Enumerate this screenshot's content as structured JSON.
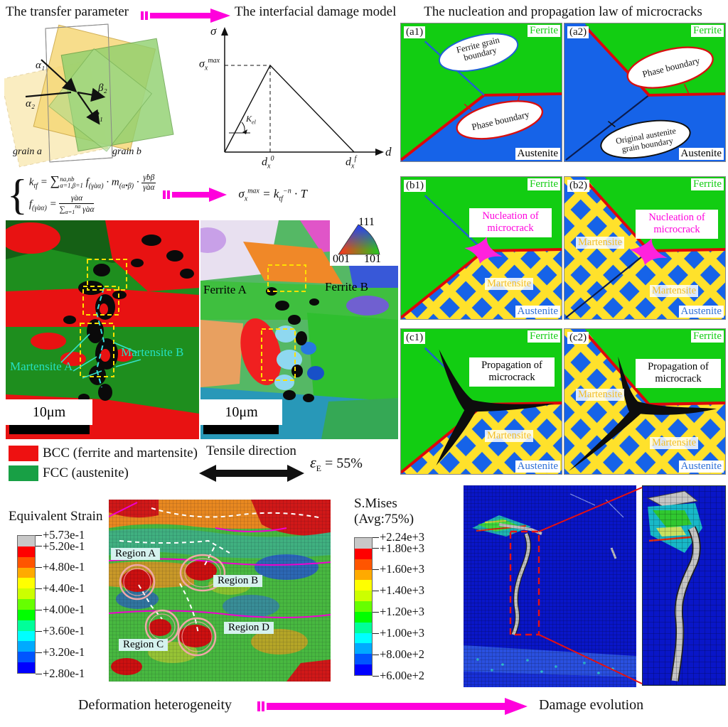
{
  "colors": {
    "accent_magenta": "#FF00DC",
    "ferrite_green": "#12CD12",
    "austenite_blue": "#1663E8",
    "martensite_yellow": "#FFE12B",
    "phase_boundary_red": "#DD0808",
    "grain_boundary_blue": "#2060D0",
    "bcc_red": "#EE1111",
    "fcc_green": "#18A045",
    "region_chip_cyan": "#D5F2EE"
  },
  "colorbar_colors": [
    "#C8C8C8",
    "#FF0000",
    "#FF5500",
    "#FFAA00",
    "#FFFF00",
    "#CCFF00",
    "#66FF00",
    "#00FF00",
    "#00FF99",
    "#00FFFF",
    "#00AAFF",
    "#0055FF",
    "#0000FF"
  ],
  "header": {
    "transfer": "The transfer parameter",
    "interfacial": "The interfacial damage model",
    "nucleation": "The nucleation and propagation law of microcracks"
  },
  "grain_diagram": {
    "alpha1": "α₁",
    "alpha2": "α₂",
    "beta1": "β₁",
    "beta2": "β₂",
    "grain_a": "grain a",
    "grain_b": "grain b"
  },
  "traction": {
    "y_label": "σ",
    "peak_base": "σ",
    "peak_sub": "x",
    "peak_sup": "max",
    "k_base": "K",
    "k_sub": "el",
    "x_label": "d",
    "d0_base": "d",
    "d0_sub": "x",
    "d0_sup": "0",
    "df_base": "d",
    "df_sub": "x",
    "df_sup": "f"
  },
  "formulas": {
    "brace": "{",
    "l1": {
      "k": "k",
      "ksub": "tf",
      "eq": "=",
      "sum": "∑",
      "sumsup": "na,nb",
      "sumsub": "α=1,β=1",
      "f": "f",
      "fsub": "(γ̇aα)",
      "dot1": "·",
      "m": "m",
      "msub": "(α•β)",
      "dot2": "·",
      "num": "γ̇bβ",
      "den": "γ̇aα"
    },
    "l2": {
      "f": "f",
      "fsub": "(γ̇aα)",
      "eq": "=",
      "num": "γ̇aα",
      "densum": "∑",
      "densub": "α=1",
      "densup": "na",
      "dentail": "γ̇aα"
    },
    "result": {
      "sigma": "σ",
      "sub": "x",
      "sup": "max",
      "eq": "= k",
      "ksub": "tf",
      "ksup": "−n",
      "tail": "· T"
    }
  },
  "panels": {
    "a1": {
      "id": "(a1)",
      "ferrite": "Ferrite",
      "austenite": "Austenite",
      "ellipse1_l1": "Ferrite grain",
      "ellipse1_l2": "boundary",
      "ellipse2": "Phase boundary"
    },
    "a2": {
      "id": "(a2)",
      "ferrite": "Ferrite",
      "austenite": "Austenite",
      "ellipse1": "Phase boundary",
      "ellipse2_l1": "Original austenite",
      "ellipse2_l2": "grain boundary"
    },
    "b1": {
      "id": "(b1)",
      "ferrite": "Ferrite",
      "austenite": "Austenite",
      "note_l1": "Nucleation of",
      "note_l2": "microcrack",
      "martensite": "Martensite"
    },
    "b2": {
      "id": "(b2)",
      "ferrite": "Ferrite",
      "austenite": "Austenite",
      "note_l1": "Nucleation of",
      "note_l2": "microcrack",
      "martensite1": "Martensite",
      "martensite2": "Martensite"
    },
    "c1": {
      "id": "(c1)",
      "ferrite": "Ferrite",
      "austenite": "Austenite",
      "note_l1": "Propagation of",
      "note_l2": "microcrack",
      "martensite": "Martensite"
    },
    "c2": {
      "id": "(c2)",
      "ferrite": "Ferrite",
      "austenite": "Austenite",
      "note_l1": "Propagation of",
      "note_l2": "microcrack",
      "martensite1": "Martensite",
      "martensite2": "Martensite"
    }
  },
  "ebsd": {
    "left": {
      "martensite_a": "Martensite A",
      "martensite_b": "Martensite B",
      "scale": "10μm"
    },
    "right": {
      "ferrite_a": "Ferrite A",
      "ferrite_b": "Ferrite B",
      "scale": "10μm",
      "ipf_111": "111",
      "ipf_001": "001",
      "ipf_101": "101"
    }
  },
  "legend": {
    "bcc": "BCC (ferrite and martensite)",
    "fcc": "FCC (austenite)",
    "tensile": "Tensile direction",
    "eps_sym": "ε",
    "eps_sub": "E",
    "eps_val": "= 55%"
  },
  "strain_section": {
    "title": "Equivalent Strain",
    "labels": [
      "+5.73e-1",
      "+5.20e-1",
      "+4.80e-1",
      "+4.40e-1",
      "+4.00e-1",
      "+3.60e-1",
      "+3.20e-1",
      "+2.80e-1"
    ],
    "regions": [
      "Region A",
      "Region B",
      "Region C",
      "Region D"
    ]
  },
  "mises_section": {
    "title_l1": "S.Mises",
    "title_l2": "(Avg:75%)",
    "labels": [
      "+2.24e+3",
      "+1.80e+3",
      "+1.60e+3",
      "+1.40e+3",
      "+1.20e+3",
      "+1.00e+3",
      "+8.00e+2",
      "+6.00e+2"
    ]
  },
  "footer": {
    "left": "Deformation heterogeneity",
    "right": "Damage evolution"
  }
}
